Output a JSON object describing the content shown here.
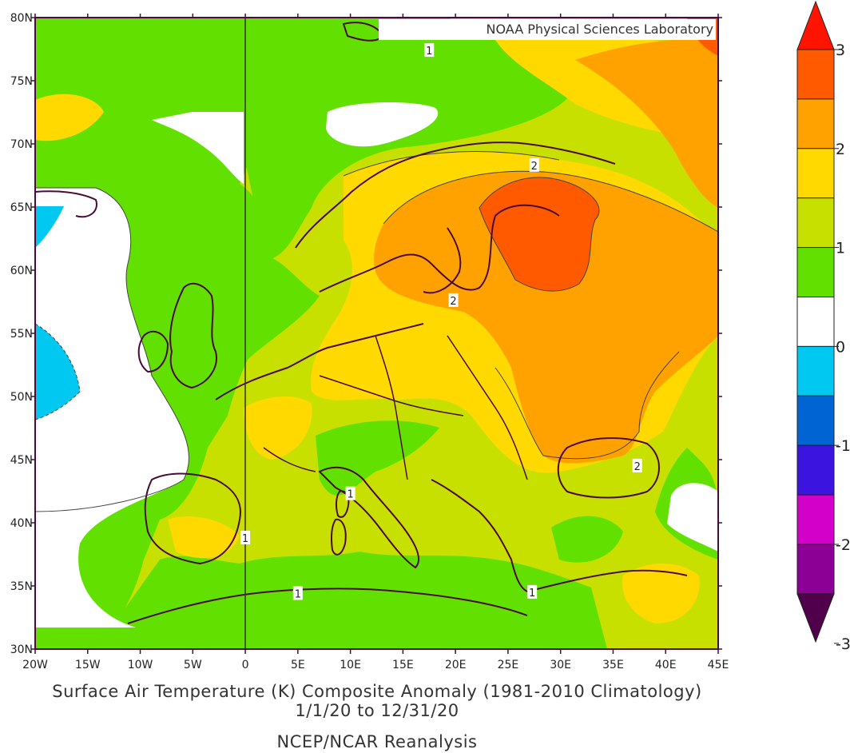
{
  "credit": "NOAA Physical Sciences Laboratory",
  "title": {
    "line1": "Surface Air Temperature (K) Composite Anomaly (1981-2010 Climatology)",
    "line2": "1/1/20  to 12/31/20",
    "line3": "NCEP/NCAR Reanalysis"
  },
  "axes": {
    "lon_labels": [
      "20W",
      "15W",
      "10W",
      "5W",
      "0",
      "5E",
      "10E",
      "15E",
      "20E",
      "25E",
      "30E",
      "35E",
      "40E",
      "45E"
    ],
    "lat_labels": [
      "80N",
      "75N",
      "70N",
      "65N",
      "60N",
      "55N",
      "50N",
      "45N",
      "40N",
      "35N",
      "30N"
    ],
    "lon_range": [
      -20,
      45
    ],
    "lat_range": [
      30,
      80
    ]
  },
  "colorbar": {
    "labels": [
      "3",
      "2",
      "1",
      "0",
      "-1",
      "-2",
      "-3"
    ],
    "bands": [
      {
        "color": "#ff5a00"
      },
      {
        "color": "#ffa200"
      },
      {
        "color": "#ffd900"
      },
      {
        "color": "#c8e000"
      },
      {
        "color": "#62e000"
      },
      {
        "color": "#ffffff"
      },
      {
        "color": "#00c8f0"
      },
      {
        "color": "#0064d2"
      },
      {
        "color": "#3c14e0"
      },
      {
        "color": "#d200c8"
      },
      {
        "color": "#8c0096"
      }
    ],
    "top_arrow_color": "#ff1400",
    "bottom_arrow_color": "#50004b"
  },
  "contour_labels": [
    {
      "text": "1",
      "lon": 17.5,
      "lat": 77.4
    },
    {
      "text": "2",
      "lon": 27.5,
      "lat": 68.3
    },
    {
      "text": "2",
      "lon": 19.8,
      "lat": 57.6
    },
    {
      "text": "2",
      "lon": 37.3,
      "lat": 44.5
    },
    {
      "text": "1",
      "lon": 10.0,
      "lat": 42.3
    },
    {
      "text": "1",
      "lon": 0.0,
      "lat": 38.8
    },
    {
      "text": "1",
      "lon": 5.0,
      "lat": 34.4
    },
    {
      "text": "1",
      "lon": 27.3,
      "lat": 34.5
    }
  ]
}
